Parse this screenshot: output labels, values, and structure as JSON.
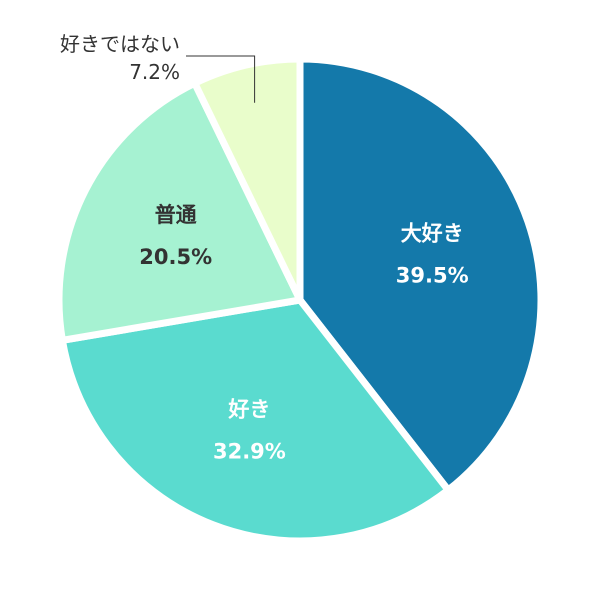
{
  "chart_data": {
    "type": "pie",
    "start_angle_deg": 0,
    "direction": "clockwise",
    "slices": [
      {
        "label": "大好き",
        "value": 39.5,
        "value_label": "39.5%",
        "color": "#1479AA",
        "text_color": "#ffffff"
      },
      {
        "label": "好き",
        "value": 32.9,
        "value_label": "32.9%",
        "color": "#5ADBCF",
        "text_color": "#ffffff"
      },
      {
        "label": "普通",
        "value": 20.5,
        "value_label": "20.5%",
        "color": "#A6F2D2",
        "text_color": "#333333"
      },
      {
        "label": "好きではない",
        "value": 7.2,
        "value_label": "7.2%",
        "color": "#E9FDCB",
        "text_color": "#333333",
        "label_placement": "outside"
      }
    ]
  }
}
